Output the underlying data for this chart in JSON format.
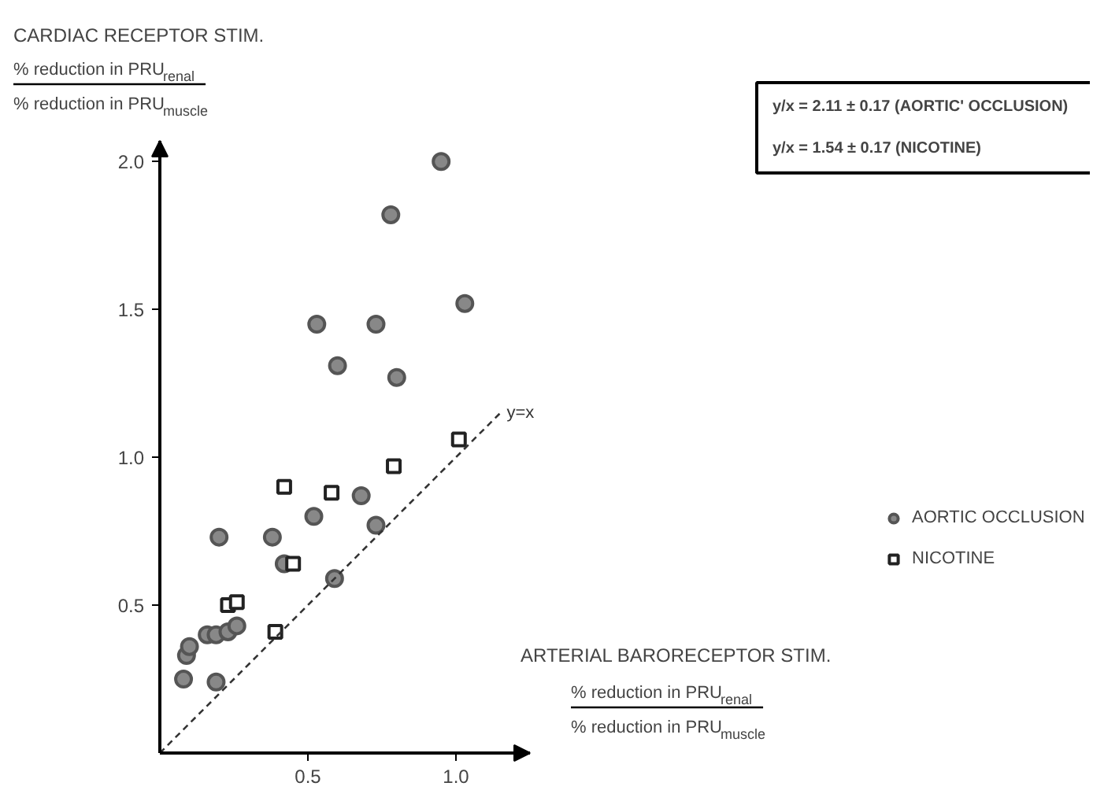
{
  "chart_data": {
    "type": "scatter",
    "title": "CARDIAC RECEPTOR STIM.",
    "ylabel": "% reduction in PRU$_{renal}$\n% reduction in PRU$_{muscle}$",
    "xlabel": "ARTERIAL BARORECEPTOR STIM.\n% reduction in PRU$_{renal}$\n% reduction in PRU$_{muscle}$",
    "annotations": [
      "y/x = 2.11 ± 0.17   (AORTIC' OCCLUSION)",
      "y/x = 1.54 ± 0.17   (NICOTINE)"
    ],
    "xlim": [
      0,
      1.25
    ],
    "ylim": [
      0,
      2.07
    ],
    "xticks": [
      0.5,
      {
        "value": 1,
        "label": "1.0"
      }
    ],
    "yticks": [
      0.5,
      {
        "value": 1,
        "label": "1.0"
      },
      1.5,
      {
        "value": 2,
        "label": "2.0"
      }
    ],
    "grid": false,
    "legend": "right",
    "series": [
      {
        "name": "AORTIC OCCLUSION",
        "color": "#555555",
        "marker": "circle",
        "x": [
          0.08,
          0.09,
          0.1,
          0.19,
          0.16,
          0.19,
          0.23,
          0.26,
          0.2,
          0.38,
          0.42,
          0.52,
          0.59,
          0.68,
          0.73,
          0.95,
          0.78,
          1.03,
          0.53,
          0.73,
          0.6,
          0.8
        ],
        "values": [
          0.25,
          0.33,
          0.36,
          0.24,
          0.4,
          0.4,
          0.41,
          0.43,
          0.73,
          0.73,
          0.64,
          0.8,
          0.59,
          0.87,
          0.77,
          2.0,
          1.82,
          1.52,
          1.45,
          1.45,
          1.31,
          1.27
        ]
      },
      {
        "name": "NICOTINE",
        "color": "#222222",
        "marker": "square",
        "x": [
          1.01,
          0.79,
          0.58,
          0.42,
          0.45,
          0.23,
          0.26,
          0.39
        ],
        "values": [
          1.06,
          0.97,
          0.88,
          0.9,
          0.64,
          0.5,
          0.51,
          0.41
        ]
      },
      {
        "name": "y=x",
        "type": "line",
        "color": "#333333",
        "line_style": "dashed",
        "marker": "none",
        "x": [
          0,
          1.15
        ],
        "values": [
          0,
          1.15
        ]
      }
    ]
  }
}
